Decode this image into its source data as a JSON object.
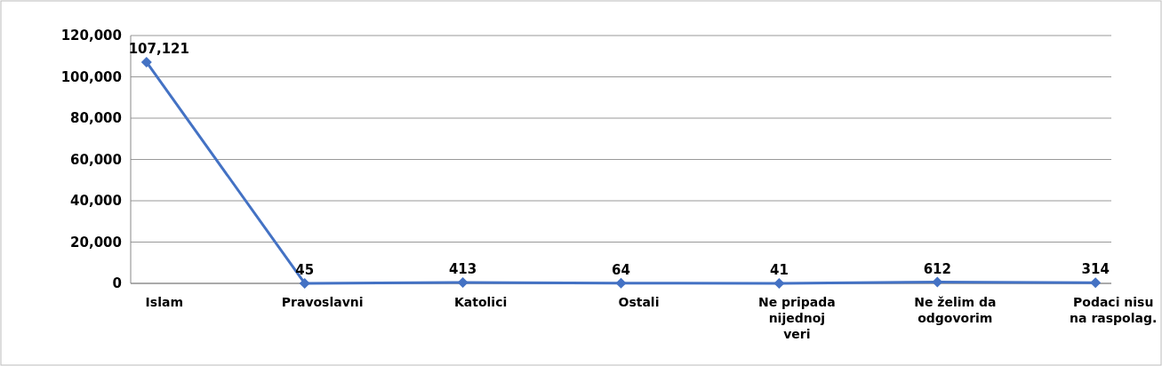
{
  "chart_data": {
    "type": "line",
    "categories": [
      "Islam",
      "Pravoslavni",
      "Katolici",
      "Ostali",
      "Ne pripada nijednoj veri",
      "Ne želim da odgovorim",
      "Podaci nisu na raspolag."
    ],
    "series": [
      {
        "color": "#4472c4",
        "values": [
          107121,
          45,
          413,
          64,
          41,
          612,
          314
        ],
        "value_labels": [
          "107,121",
          "45",
          "413",
          "64",
          "41",
          "612",
          "314"
        ]
      }
    ],
    "ylim": [
      0,
      120000
    ],
    "yticks": [
      {
        "value": 0,
        "label": "0"
      },
      {
        "value": 20000,
        "label": "20,000"
      },
      {
        "value": 40000,
        "label": "40,000"
      },
      {
        "value": 60000,
        "label": "60,000"
      },
      {
        "value": 80000,
        "label": "80,000"
      },
      {
        "value": 100000,
        "label": "100,000"
      },
      {
        "value": 120000,
        "label": "120,000"
      }
    ],
    "grid": "y",
    "marker": "diamond",
    "line_style": "solid"
  }
}
